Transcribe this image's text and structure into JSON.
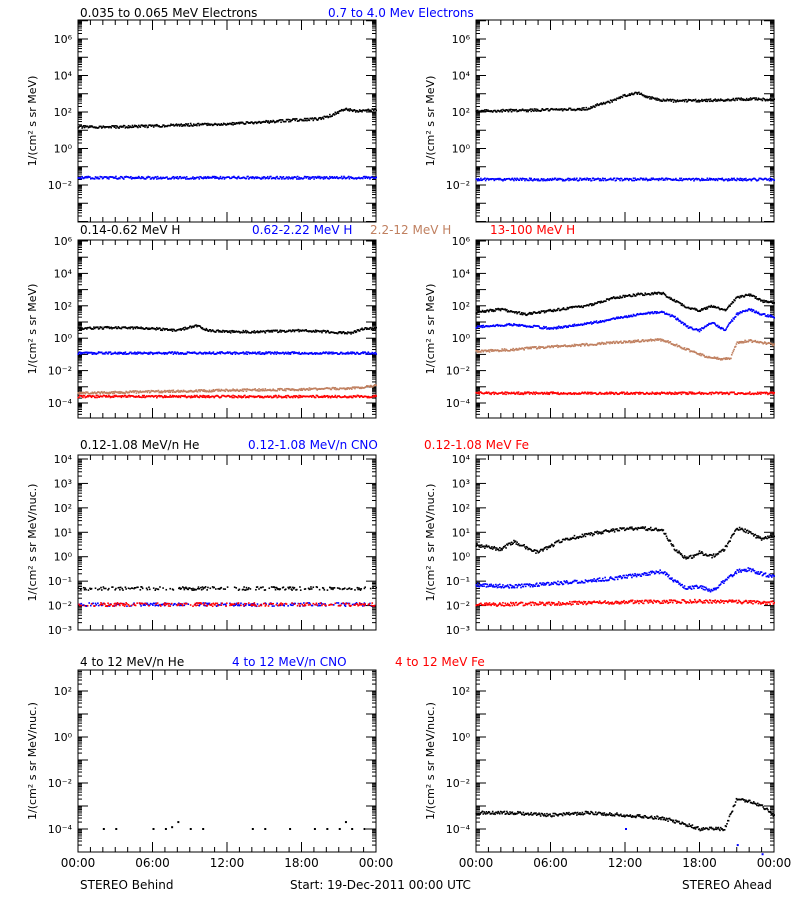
{
  "colors": {
    "black": "#000000",
    "blue": "#0000ff",
    "tan": "#c08060",
    "red": "#ff0000"
  },
  "footer": {
    "left": "STEREO Behind",
    "center": "Start: 19-Dec-2011 00:00 UTC",
    "right": "STEREO Ahead"
  },
  "time_ticks": [
    "00:00",
    "06:00",
    "12:00",
    "18:00",
    "00:00"
  ],
  "rows": [
    {
      "legend": [
        {
          "text": "0.035 to 0.065 MeV Electrons",
          "color": "black"
        },
        {
          "text": "0.7 to 4.0 Mev Electrons",
          "color": "blue"
        }
      ],
      "ylabel": "1/(cm² s sr MeV)",
      "exponents": [
        -2,
        0,
        2,
        4,
        6
      ]
    },
    {
      "legend": [
        {
          "text": "0.14-0.62 MeV H",
          "color": "black"
        },
        {
          "text": "0.62-2.22 MeV H",
          "color": "blue"
        },
        {
          "text": "2.2-12 MeV H",
          "color": "tan"
        },
        {
          "text": "13-100 MeV H",
          "color": "red"
        }
      ],
      "ylabel": "1/(cm² s sr MeV)",
      "exponents": [
        -4,
        -2,
        0,
        2,
        4,
        6
      ]
    },
    {
      "legend": [
        {
          "text": "0.12-1.08 MeV/n He",
          "color": "black"
        },
        {
          "text": "0.12-1.08 MeV/n CNO",
          "color": "blue"
        },
        {
          "text": "0.12-1.08 MeV Fe",
          "color": "red"
        }
      ],
      "ylabel": "1/(cm² s sr MeV/nuc.)",
      "exponents": [
        -3,
        -2,
        -1,
        0,
        1,
        2,
        3,
        4
      ]
    },
    {
      "legend": [
        {
          "text": "4 to 12 MeV/n He",
          "color": "black"
        },
        {
          "text": "4 to 12 MeV/n CNO",
          "color": "blue"
        },
        {
          "text": "4 to 12 MeV Fe",
          "color": "red"
        }
      ],
      "ylabel": "1/(cm² s sr MeV/nuc.)",
      "exponents": [
        -4,
        -2,
        0,
        2
      ]
    }
  ],
  "chart_data": [
    {
      "type": "scatter",
      "panel": "STEREO Behind",
      "row": 1,
      "yscale": "log",
      "xlabel": "",
      "ylabel": "1/(cm² s sr MeV)",
      "ylim": [
        0.003,
        3000000
      ],
      "xlim_hours": [
        0,
        24
      ],
      "series": [
        {
          "name": "0.035 to 0.065 MeV Electrons",
          "color": "black",
          "x": [
            0,
            3,
            6,
            9,
            12,
            15,
            18,
            19.5,
            20.5,
            21.5,
            22.5,
            24
          ],
          "y": [
            15,
            15,
            17,
            20,
            22,
            28,
            38,
            42,
            70,
            150,
            110,
            130
          ]
        },
        {
          "name": "0.7 to 4.0 Mev Electrons",
          "color": "blue",
          "x": [
            0,
            6,
            12,
            18,
            24
          ],
          "y": [
            0.025,
            0.025,
            0.025,
            0.025,
            0.025
          ]
        }
      ]
    },
    {
      "type": "scatter",
      "panel": "STEREO Ahead",
      "row": 1,
      "yscale": "log",
      "xlabel": "",
      "ylabel": "1/(cm² s sr MeV)",
      "ylim": [
        0.003,
        3000000
      ],
      "xlim_hours": [
        0,
        24
      ],
      "series": [
        {
          "name": "0.035 to 0.065 MeV Electrons",
          "color": "black",
          "x": [
            0,
            3,
            6,
            9,
            10,
            11,
            12,
            13,
            14,
            15,
            16,
            18,
            20,
            22,
            24
          ],
          "y": [
            110,
            120,
            130,
            150,
            280,
            400,
            800,
            1100,
            600,
            450,
            400,
            420,
            460,
            520,
            450
          ]
        },
        {
          "name": "0.7 to 4.0 Mev Electrons",
          "color": "blue",
          "x": [
            0,
            6,
            12,
            18,
            24
          ],
          "y": [
            0.02,
            0.02,
            0.02,
            0.02,
            0.02
          ]
        }
      ]
    },
    {
      "type": "scatter",
      "panel": "STEREO Behind",
      "row": 2,
      "yscale": "log",
      "xlabel": "",
      "ylabel": "1/(cm² s sr MeV)",
      "ylim": [
        3e-05,
        2000000
      ],
      "xlim_hours": [
        0,
        24
      ],
      "series": [
        {
          "name": "0.14-0.62 MeV H",
          "color": "black",
          "x": [
            0,
            3,
            6,
            8,
            9.5,
            10.5,
            12,
            15,
            18,
            20,
            22,
            23,
            24
          ],
          "y": [
            4,
            4.5,
            4,
            3,
            6,
            3,
            2.5,
            2.5,
            3,
            2.5,
            2,
            4,
            4
          ]
        },
        {
          "name": "0.62-2.22 MeV H",
          "color": "blue",
          "x": [
            0,
            6,
            12,
            18,
            24
          ],
          "y": [
            0.12,
            0.12,
            0.12,
            0.12,
            0.12
          ]
        },
        {
          "name": "2.2-12 MeV H",
          "color": "tan",
          "x": [
            0,
            6,
            12,
            18,
            22,
            24
          ],
          "y": [
            0.0004,
            0.0005,
            0.0006,
            0.0007,
            0.0008,
            0.0012
          ]
        },
        {
          "name": "13-100 MeV H",
          "color": "red",
          "x": [
            0,
            6,
            12,
            18,
            24
          ],
          "y": [
            0.00025,
            0.00025,
            0.00025,
            0.00025,
            0.00025
          ]
        }
      ]
    },
    {
      "type": "scatter",
      "panel": "STEREO Ahead",
      "row": 2,
      "yscale": "log",
      "xlabel": "",
      "ylabel": "1/(cm² s sr MeV)",
      "ylim": [
        3e-05,
        2000000
      ],
      "xlim_hours": [
        0,
        24
      ],
      "series": [
        {
          "name": "0.14-0.62 MeV H",
          "color": "black",
          "x": [
            0,
            2,
            4,
            6,
            9,
            11,
            13,
            15,
            16,
            17,
            18,
            19,
            20,
            21,
            22,
            23,
            24
          ],
          "y": [
            40,
            60,
            30,
            50,
            100,
            300,
            500,
            600,
            200,
            80,
            50,
            100,
            50,
            300,
            500,
            200,
            150
          ]
        },
        {
          "name": "0.62-2.22 MeV H",
          "color": "blue",
          "x": [
            0,
            3,
            6,
            9,
            11,
            13,
            15,
            16,
            17,
            18,
            19,
            20,
            21,
            22,
            23,
            24
          ],
          "y": [
            5,
            7,
            4,
            8,
            15,
            30,
            40,
            20,
            5,
            3,
            10,
            3,
            30,
            60,
            30,
            20
          ]
        },
        {
          "name": "2.2-12 MeV H",
          "color": "tan",
          "x": [
            0,
            3,
            6,
            9,
            12,
            15,
            16,
            17,
            18,
            19,
            20,
            20.5,
            21,
            22,
            24
          ],
          "y": [
            0.15,
            0.2,
            0.3,
            0.4,
            0.6,
            0.8,
            0.4,
            0.2,
            0.1,
            0.06,
            0.05,
            0.06,
            0.5,
            0.7,
            0.4
          ]
        },
        {
          "name": "13-100 MeV H",
          "color": "red",
          "x": [
            0,
            6,
            12,
            18,
            24
          ],
          "y": [
            0.0004,
            0.0004,
            0.0004,
            0.0004,
            0.0004
          ]
        }
      ]
    },
    {
      "type": "scatter",
      "panel": "STEREO Behind",
      "row": 3,
      "yscale": "log",
      "xlabel": "",
      "ylabel": "1/(cm² s sr MeV/nuc.)",
      "ylim": [
        0.0007,
        10000
      ],
      "xlim_hours": [
        0,
        24
      ],
      "series": [
        {
          "name": "0.12-1.08 MeV/n He",
          "color": "black",
          "x": [
            0,
            6,
            12,
            18,
            24
          ],
          "y": [
            0.05,
            0.05,
            0.05,
            0.05,
            0.05
          ]
        },
        {
          "name": "0.12-1.08 MeV/n CNO",
          "color": "blue",
          "x": [
            0,
            6,
            12,
            18,
            24
          ],
          "y": [
            0.011,
            0.011,
            0.011,
            0.011,
            0.011
          ]
        },
        {
          "name": "0.12-1.08 MeV Fe",
          "color": "red",
          "x": [
            0,
            6,
            12,
            18,
            24
          ],
          "y": [
            0.011,
            0.011,
            0.011,
            0.011,
            0.011
          ]
        }
      ]
    },
    {
      "type": "scatter",
      "panel": "STEREO Ahead",
      "row": 3,
      "yscale": "log",
      "xlabel": "",
      "ylabel": "1/(cm² s sr MeV/nuc.)",
      "ylim": [
        0.0007,
        10000
      ],
      "xlim_hours": [
        0,
        24
      ],
      "series": [
        {
          "name": "0.12-1.08 MeV/n He",
          "color": "black",
          "x": [
            0,
            2,
            3,
            5,
            7,
            9,
            11,
            13,
            15,
            16,
            17,
            18,
            19,
            20,
            21,
            22,
            23,
            24
          ],
          "y": [
            3,
            2,
            4,
            1.5,
            5,
            8,
            12,
            15,
            12,
            2,
            0.8,
            1.5,
            1,
            2,
            15,
            10,
            5,
            8
          ]
        },
        {
          "name": "0.12-1.08 MeV/n CNO",
          "color": "blue",
          "x": [
            0,
            3,
            6,
            9,
            12,
            15,
            16,
            17,
            18,
            19,
            20,
            21,
            22,
            23,
            24
          ],
          "y": [
            0.07,
            0.06,
            0.08,
            0.1,
            0.15,
            0.25,
            0.1,
            0.05,
            0.06,
            0.04,
            0.1,
            0.25,
            0.3,
            0.2,
            0.15
          ]
        },
        {
          "name": "0.12-1.08 MeV Fe",
          "color": "red",
          "x": [
            0,
            6,
            12,
            18,
            24
          ],
          "y": [
            0.011,
            0.012,
            0.014,
            0.015,
            0.013
          ]
        }
      ]
    },
    {
      "type": "scatter",
      "panel": "STEREO Behind",
      "row": 4,
      "yscale": "log",
      "xlabel": "",
      "ylabel": "1/(cm² s sr MeV/nuc.)",
      "ylim": [
        5e-06,
        2000
      ],
      "xlim_hours": [
        0,
        24
      ],
      "series": [
        {
          "name": "4 to 12 MeV/n He",
          "color": "black",
          "x": [
            2,
            3,
            6,
            7,
            7.5,
            8,
            9,
            10,
            14,
            15,
            17,
            19,
            20,
            21,
            21.5,
            22,
            23
          ],
          "y": [
            0.0001,
            0.0001,
            0.0001,
            0.0001,
            0.00012,
            0.0002,
            0.0001,
            0.0001,
            0.0001,
            0.0001,
            0.0001,
            0.0001,
            0.0001,
            0.0001,
            0.0002,
            0.0001,
            0.0001
          ]
        }
      ]
    },
    {
      "type": "scatter",
      "panel": "STEREO Ahead",
      "row": 4,
      "yscale": "log",
      "xlabel": "",
      "ylabel": "1/(cm² s sr MeV/nuc.)",
      "ylim": [
        5e-06,
        2000
      ],
      "xlim_hours": [
        0,
        24
      ],
      "series": [
        {
          "name": "4 to 12 MeV/n He",
          "color": "black",
          "x": [
            0,
            3,
            6,
            9,
            12,
            15,
            17,
            18,
            19,
            20,
            21,
            22,
            23,
            24
          ],
          "y": [
            0.0005,
            0.0005,
            0.0004,
            0.0005,
            0.0004,
            0.0003,
            0.00015,
            0.0001,
            0.0001,
            0.0001,
            0.002,
            0.0015,
            0.001,
            0.0004
          ]
        },
        {
          "name": "4 to 12 MeV/n CNO",
          "color": "blue",
          "x": [
            12,
            21,
            23
          ],
          "y": [
            0.0001,
            2e-05,
            8e-06
          ]
        }
      ]
    }
  ]
}
